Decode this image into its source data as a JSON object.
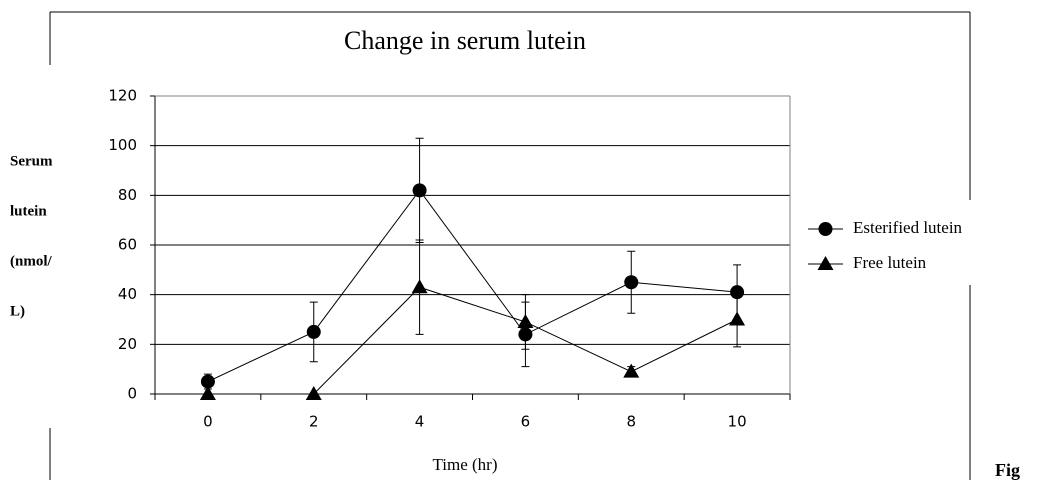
{
  "chart_data": {
    "type": "line",
    "title": "Change in serum lutein",
    "xlabel": "Time (hr)",
    "ylabel": [
      "Serum",
      "lutein",
      "(nmol/",
      "L)"
    ],
    "categories": [
      "0",
      "2",
      "4",
      "6",
      "8",
      "10"
    ],
    "series": [
      {
        "name": "Esterified lutein",
        "color": "#000000",
        "marker": "circle",
        "values": [
          5,
          25,
          82,
          24,
          45,
          41
        ],
        "errors": [
          3,
          12,
          21,
          13,
          12.5,
          11
        ]
      },
      {
        "name": "Free lutein",
        "color": "#000000",
        "marker": "triangle",
        "values": [
          0,
          0,
          43,
          29,
          9,
          30
        ],
        "errors": [
          0,
          0,
          19,
          11,
          2,
          11
        ]
      }
    ],
    "ylim": [
      0,
      120
    ],
    "yticks": [
      0,
      20,
      40,
      60,
      80,
      100,
      120
    ],
    "grid": true,
    "legend": "right",
    "footer": "Fig"
  }
}
